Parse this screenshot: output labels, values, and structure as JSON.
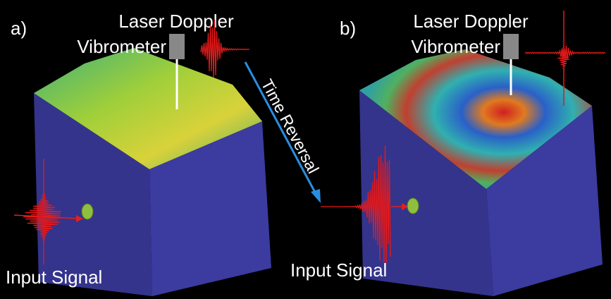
{
  "panels": [
    {
      "label": "a)",
      "ldv_label": [
        "Laser Doppler",
        "Vibrometer"
      ],
      "input_label": "Input Signal"
    },
    {
      "label": "b)",
      "ldv_label": [
        "Laser Doppler",
        "Vibrometer"
      ],
      "input_label": "Input Signal"
    }
  ],
  "arrow_label": "Time Reversal"
}
